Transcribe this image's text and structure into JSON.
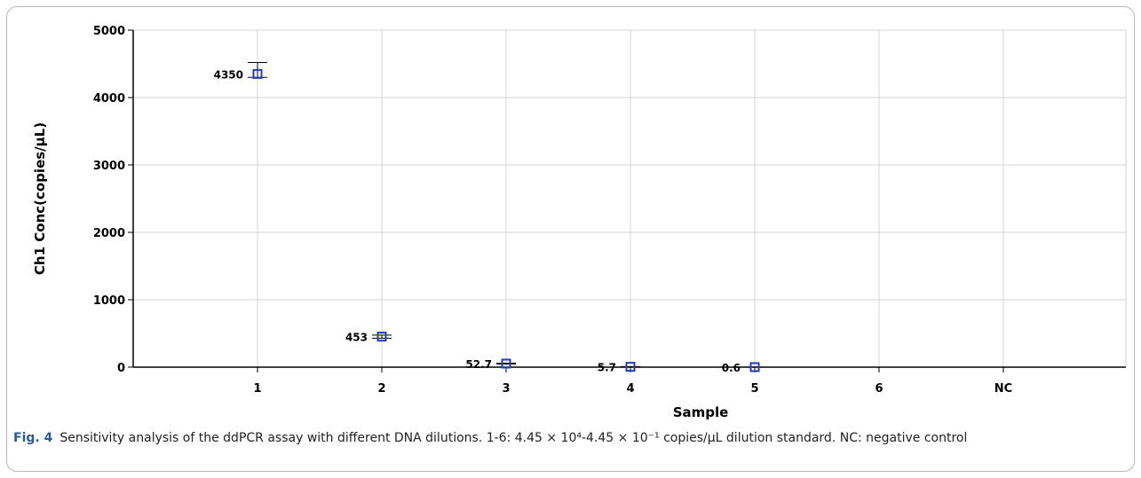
{
  "chart_data": {
    "type": "scatter",
    "xlabel": "Sample",
    "ylabel": "Ch1 Conc(copies/µL)",
    "categories": [
      "1",
      "2",
      "3",
      "4",
      "5",
      "6",
      "NC"
    ],
    "ylim": [
      0,
      5000
    ],
    "yticks": [
      0,
      1000,
      2000,
      3000,
      4000,
      5000
    ],
    "grid": true,
    "marker_color": "#1f3fbf",
    "points": [
      {
        "x": "1",
        "y": 4350,
        "label": "4350",
        "err_low": 4300,
        "err_high": 4520
      },
      {
        "x": "2",
        "y": 453,
        "label": "453",
        "err_low": 430,
        "err_high": 475
      },
      {
        "x": "3",
        "y": 52.7,
        "label": "52.7",
        "err_low": 45,
        "err_high": 60
      },
      {
        "x": "4",
        "y": 5.7,
        "label": "5.7",
        "err_low": 3,
        "err_high": 8
      },
      {
        "x": "5",
        "y": 0.6,
        "label": "0.6",
        "err_low": 0,
        "err_high": 2
      }
    ]
  },
  "caption": {
    "fig_label": "Fig. 4",
    "text": "Sensitivity analysis of the ddPCR assay with different DNA dilutions. 1-6: 4.45 × 10⁴-4.45 × 10⁻¹ copies/µL dilution standard. NC: negative control"
  }
}
